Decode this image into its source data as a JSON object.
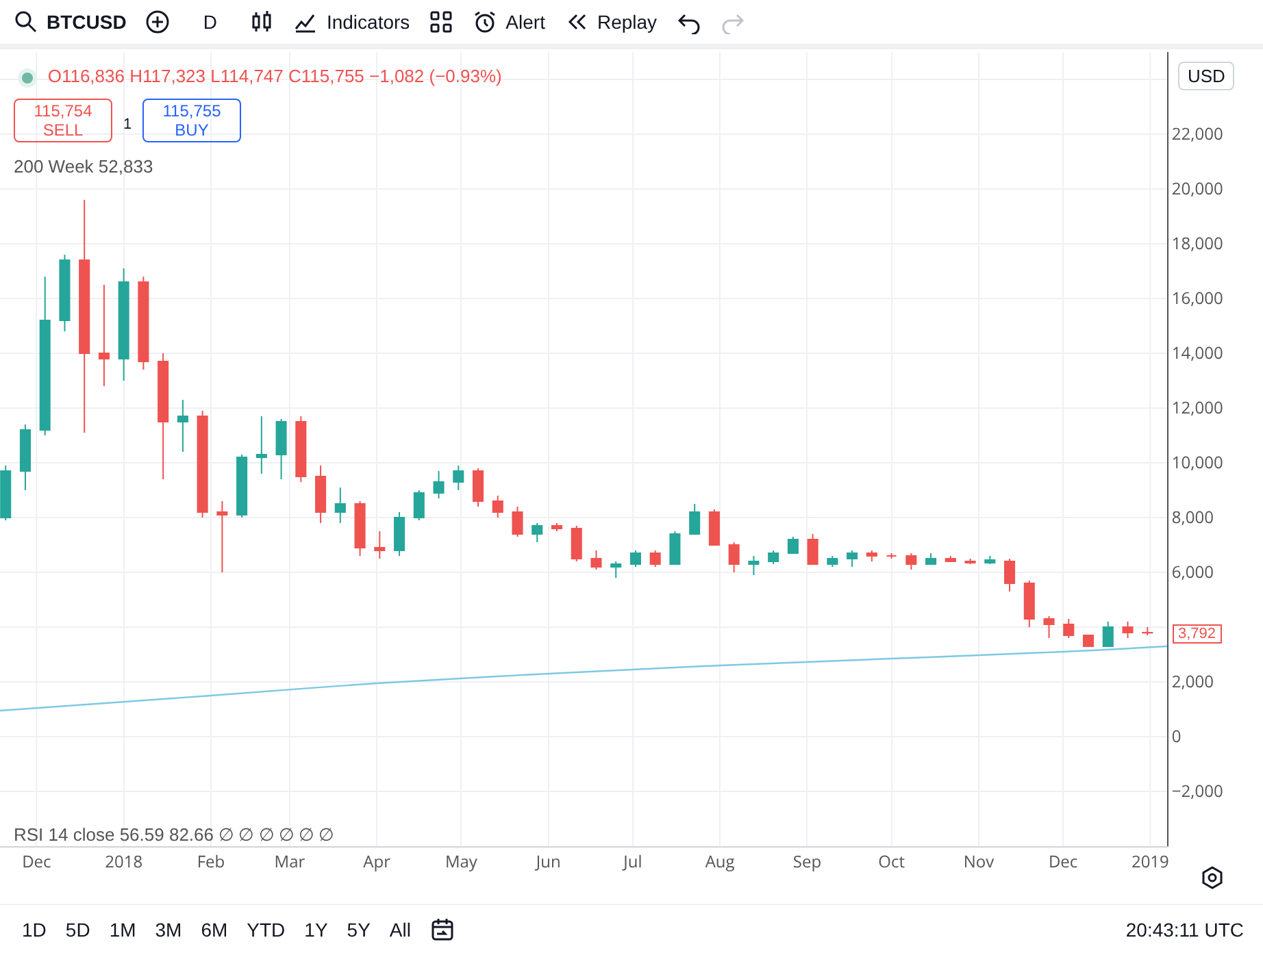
{
  "chart_data": {
    "type": "candlestick",
    "x": [
      "2017-11-20",
      "2017-11-27",
      "2017-12-04",
      "2017-12-11",
      "2017-12-18",
      "2017-12-25",
      "2018-01-01",
      "2018-01-08",
      "2018-01-15",
      "2018-01-22",
      "2018-01-29",
      "2018-02-05",
      "2018-02-12",
      "2018-02-19",
      "2018-02-26",
      "2018-03-05",
      "2018-03-12",
      "2018-03-19",
      "2018-03-26",
      "2018-04-02",
      "2018-04-09",
      "2018-04-16",
      "2018-04-23",
      "2018-04-30",
      "2018-05-07",
      "2018-05-14",
      "2018-05-21",
      "2018-05-28",
      "2018-06-04",
      "2018-06-11",
      "2018-06-18",
      "2018-06-25",
      "2018-07-02",
      "2018-07-09",
      "2018-07-16",
      "2018-07-23",
      "2018-07-30",
      "2018-08-06",
      "2018-08-13",
      "2018-08-20",
      "2018-08-27",
      "2018-09-03",
      "2018-09-10",
      "2018-09-17",
      "2018-09-24",
      "2018-10-01",
      "2018-10-08",
      "2018-10-15",
      "2018-10-22",
      "2018-10-29",
      "2018-11-05",
      "2018-11-12",
      "2018-11-19",
      "2018-11-26",
      "2018-12-03",
      "2018-12-10",
      "2018-12-17",
      "2018-12-24",
      "2018-12-31"
    ],
    "ohlc": [
      [
        8000,
        9900,
        7900,
        9700
      ],
      [
        9700,
        11400,
        9000,
        11200
      ],
      [
        11200,
        16800,
        11000,
        15200
      ],
      [
        15200,
        17600,
        14800,
        17400
      ],
      [
        17400,
        19600,
        11100,
        14000
      ],
      [
        14000,
        16500,
        12800,
        13800
      ],
      [
        13800,
        17100,
        13000,
        16600
      ],
      [
        16600,
        16800,
        13400,
        13700
      ],
      [
        13700,
        14000,
        9400,
        11500
      ],
      [
        11500,
        12300,
        10400,
        11700
      ],
      [
        11700,
        11900,
        8000,
        8200
      ],
      [
        8200,
        8600,
        6000,
        8100
      ],
      [
        8100,
        10300,
        8000,
        10200
      ],
      [
        10200,
        11700,
        9600,
        10300
      ],
      [
        10300,
        11600,
        9400,
        11500
      ],
      [
        11500,
        11700,
        9300,
        9500
      ],
      [
        9500,
        9900,
        7800,
        8200
      ],
      [
        8200,
        9100,
        7800,
        8500
      ],
      [
        8500,
        8600,
        6600,
        6900
      ],
      [
        6900,
        7500,
        6500,
        6800
      ],
      [
        6800,
        8200,
        6600,
        8000
      ],
      [
        8000,
        9000,
        7900,
        8900
      ],
      [
        8900,
        9700,
        8700,
        9300
      ],
      [
        9300,
        9900,
        9000,
        9700
      ],
      [
        9700,
        9800,
        8400,
        8600
      ],
      [
        8600,
        8800,
        8000,
        8200
      ],
      [
        8200,
        8400,
        7300,
        7400
      ],
      [
        7400,
        7800,
        7100,
        7700
      ],
      [
        7700,
        7800,
        7500,
        7600
      ],
      [
        7600,
        7700,
        6400,
        6500
      ],
      [
        6500,
        6800,
        6100,
        6200
      ],
      [
        6200,
        6400,
        5800,
        6300
      ],
      [
        6300,
        6800,
        6200,
        6700
      ],
      [
        6700,
        6800,
        6200,
        6300
      ],
      [
        6300,
        7500,
        6300,
        7400
      ],
      [
        7400,
        8500,
        7400,
        8200
      ],
      [
        8200,
        8300,
        7000,
        7000
      ],
      [
        7000,
        7100,
        6000,
        6300
      ],
      [
        6300,
        6600,
        5900,
        6400
      ],
      [
        6400,
        6800,
        6300,
        6700
      ],
      [
        6700,
        7300,
        6700,
        7200
      ],
      [
        7200,
        7400,
        6300,
        6300
      ],
      [
        6300,
        6600,
        6200,
        6500
      ],
      [
        6500,
        6800,
        6200,
        6700
      ],
      [
        6700,
        6800,
        6400,
        6600
      ],
      [
        6600,
        6700,
        6500,
        6600
      ],
      [
        6600,
        6700,
        6100,
        6300
      ],
      [
        6300,
        6700,
        6300,
        6500
      ],
      [
        6500,
        6600,
        6400,
        6400
      ],
      [
        6400,
        6500,
        6300,
        6350
      ],
      [
        6350,
        6600,
        6300,
        6450
      ],
      [
        6400,
        6500,
        5300,
        5600
      ],
      [
        5600,
        5700,
        4000,
        4300
      ],
      [
        4300,
        4400,
        3600,
        4100
      ],
      [
        4100,
        4300,
        3600,
        3700
      ],
      [
        3700,
        3700,
        3300,
        3300
      ],
      [
        3300,
        4200,
        3300,
        4000
      ],
      [
        4000,
        4200,
        3600,
        3800
      ],
      [
        3800,
        4000,
        3700,
        3792
      ]
    ],
    "series": [
      {
        "type": "line",
        "color": "#7ec8e3",
        "x": [
          "2017-11-18",
          "2018-02-01",
          "2018-04-01",
          "2018-06-01",
          "2018-08-01",
          "2018-10-01",
          "2018-12-01",
          "2019-01-07"
        ],
        "values": [
          950,
          1500,
          1950,
          2300,
          2600,
          2850,
          3100,
          3300
        ]
      }
    ],
    "xlim": [
      "2017-11-18",
      "2019-01-07"
    ],
    "xticks": [
      {
        "value": "2017-12-01",
        "label": "Dec"
      },
      {
        "value": "2018-01-01",
        "label": "2018"
      },
      {
        "value": "2018-02-01",
        "label": "Feb"
      },
      {
        "value": "2018-03-01",
        "label": "Mar"
      },
      {
        "value": "2018-04-01",
        "label": "Apr"
      },
      {
        "value": "2018-05-01",
        "label": "May"
      },
      {
        "value": "2018-06-01",
        "label": "Jun"
      },
      {
        "value": "2018-07-01",
        "label": "Jul"
      },
      {
        "value": "2018-08-01",
        "label": "Aug"
      },
      {
        "value": "2018-09-01",
        "label": "Sep"
      },
      {
        "value": "2018-10-01",
        "label": "Oct"
      },
      {
        "value": "2018-11-01",
        "label": "Nov"
      },
      {
        "value": "2018-12-01",
        "label": "Dec"
      },
      {
        "value": "2019-01-01",
        "label": "2019"
      }
    ],
    "ylim": [
      -4000,
      25000
    ],
    "yticks": [
      {
        "value": -2000,
        "label": "−2,000"
      },
      {
        "value": 0,
        "label": "0"
      },
      {
        "value": 2000,
        "label": "2,000"
      },
      {
        "value": 4000,
        "label": null
      },
      {
        "value": 6000,
        "label": "6,000"
      },
      {
        "value": 8000,
        "label": "8,000"
      },
      {
        "value": 10000,
        "label": "10,000"
      },
      {
        "value": 12000,
        "label": "12,000"
      },
      {
        "value": 14000,
        "label": "14,000"
      },
      {
        "value": 16000,
        "label": "16,000"
      },
      {
        "value": 18000,
        "label": "18,000"
      },
      {
        "value": 20000,
        "label": "20,000"
      },
      {
        "value": 22000,
        "label": "22,000"
      },
      {
        "value": 24000,
        "label": null
      }
    ],
    "grid": true,
    "annotations": [
      "BTCUSD",
      "D",
      "Indicators",
      "Alert",
      "Replay",
      "O116,836 H117,323 L114,747 C115,755 −1,082 (−0.93%)",
      "115,754",
      "SELL",
      "1",
      "115,755",
      "BUY",
      "200 Week 52,833",
      "RSI 14 close 56.59 82.66 ∅ ∅ ∅ ∅ ∅ ∅",
      "USD",
      "1D",
      "5D",
      "1M",
      "3M",
      "6M",
      "YTD",
      "1Y",
      "5Y",
      "All",
      "20:43:11 UTC",
      "3,792"
    ]
  }
}
